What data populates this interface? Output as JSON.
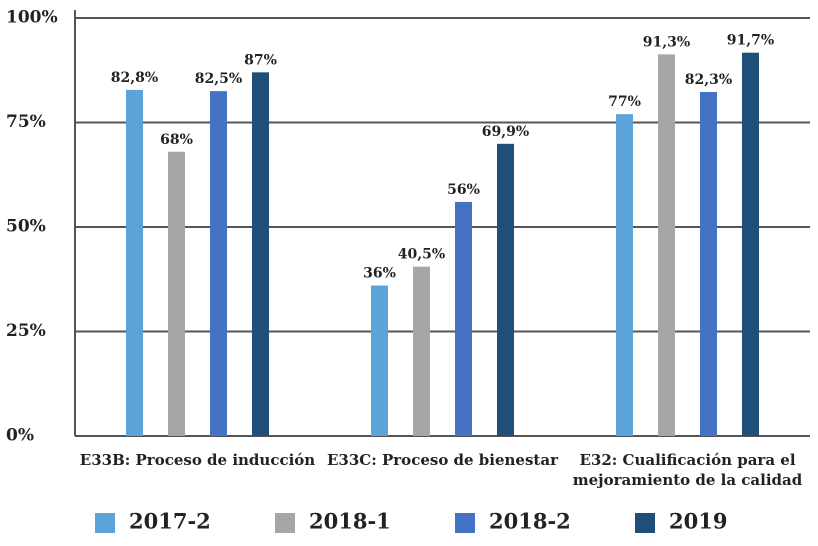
{
  "chart_data": {
    "type": "bar",
    "categories": [
      "E33B: Proceso de inducción",
      "E33C: Proceso de bienestar",
      "E32: Cualificación para el mejoramiento de la calidad"
    ],
    "series": [
      {
        "name": "2017-2",
        "color": "#5ba3d9",
        "values": [
          82.8,
          36,
          77
        ],
        "value_labels": [
          "82,8%",
          "36%",
          "77%"
        ]
      },
      {
        "name": "2018-1",
        "color": "#a6a6a6",
        "values": [
          68,
          40.5,
          91.3
        ],
        "value_labels": [
          "68%",
          "40,5%",
          "91,3%"
        ]
      },
      {
        "name": "2018-2",
        "color": "#4472c4",
        "values": [
          82.5,
          56,
          82.3
        ],
        "value_labels": [
          "82,5%",
          "56%",
          "82,3%"
        ]
      },
      {
        "name": "2019",
        "color": "#1f4e79",
        "values": [
          87,
          69.9,
          91.7
        ],
        "value_labels": [
          "87%",
          "69,9%",
          "91,7%"
        ]
      }
    ],
    "ylim": [
      0,
      100
    ],
    "yticks": [
      {
        "value": 0,
        "label": "0%"
      },
      {
        "value": 25,
        "label": "25%"
      },
      {
        "value": 50,
        "label": "50%"
      },
      {
        "value": 75,
        "label": "75%"
      },
      {
        "value": 100,
        "label": "100%"
      }
    ],
    "grid": true,
    "legend": "bottom"
  }
}
